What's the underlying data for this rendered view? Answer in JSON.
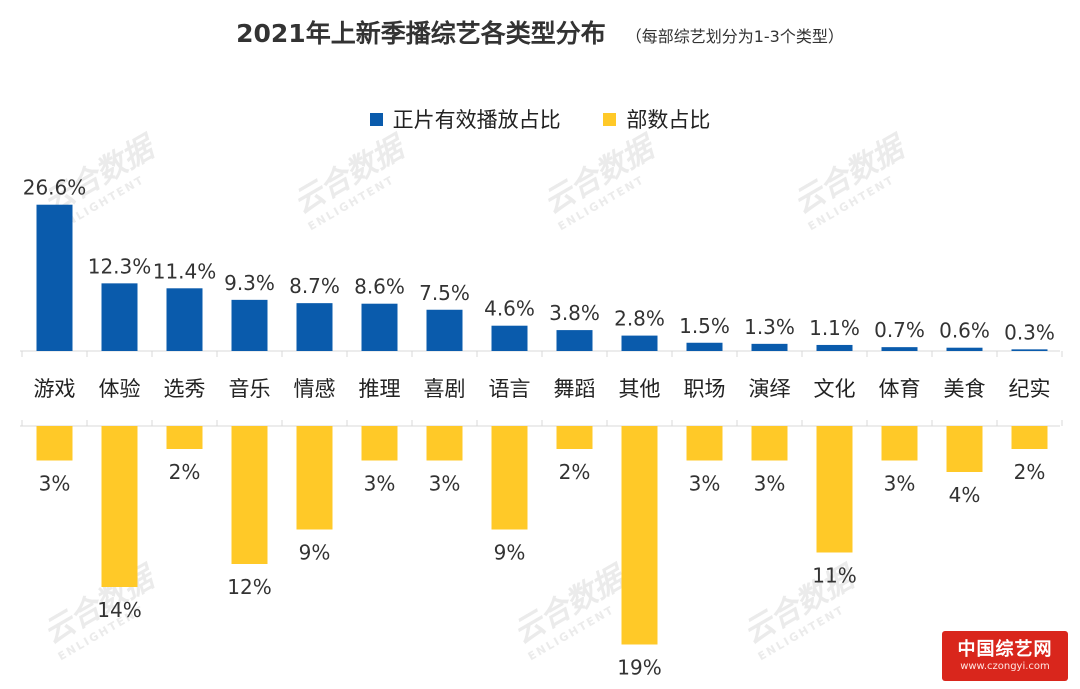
{
  "title": "2021年上新季播综艺各类型分布",
  "subtitle": "（每部综艺划分为1-3个类型）",
  "watermark": {
    "cn": "云合数据",
    "en": "ENLIGHTENT"
  },
  "badge": {
    "name": "中国综艺网",
    "url": "www.czongyi.com"
  },
  "colors": {
    "blue": "#0a5bac",
    "yellow": "#ffc928",
    "axis": "#d9d9d9"
  },
  "chart_data": {
    "type": "bar",
    "categories": [
      "游戏",
      "体验",
      "选秀",
      "音乐",
      "情感",
      "推理",
      "喜剧",
      "语言",
      "舞蹈",
      "其他",
      "职场",
      "演绎",
      "文化",
      "体育",
      "美食",
      "纪实"
    ],
    "series": [
      {
        "name": "正片有效播放占比",
        "direction": "up",
        "values": [
          26.6,
          12.3,
          11.4,
          9.3,
          8.7,
          8.6,
          7.5,
          4.6,
          3.8,
          2.8,
          1.5,
          1.3,
          1.1,
          0.7,
          0.6,
          0.3
        ],
        "labels": [
          "26.6%",
          "12.3%",
          "11.4%",
          "9.3%",
          "8.7%",
          "8.6%",
          "7.5%",
          "4.6%",
          "3.8%",
          "2.8%",
          "1.5%",
          "1.3%",
          "1.1%",
          "0.7%",
          "0.6%",
          "0.3%"
        ]
      },
      {
        "name": "部数占比",
        "direction": "down",
        "values": [
          3,
          14,
          2,
          12,
          9,
          3,
          3,
          9,
          2,
          19,
          3,
          3,
          11,
          3,
          4,
          2
        ],
        "labels": [
          "3%",
          "14%",
          "2%",
          "12%",
          "9%",
          "3%",
          "3%",
          "9%",
          "2%",
          "19%",
          "3%",
          "3%",
          "11%",
          "3%",
          "4%",
          "2%"
        ]
      }
    ],
    "legend_position": "top-center",
    "grid": false
  }
}
